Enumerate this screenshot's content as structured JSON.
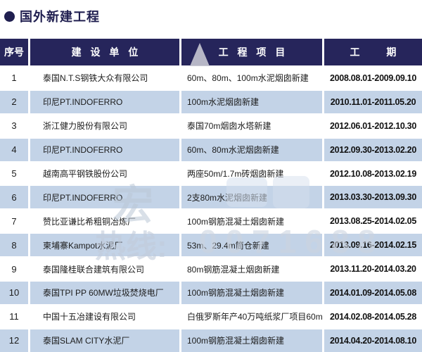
{
  "page": {
    "bullet": "●",
    "title": "国外新建工程"
  },
  "colors": {
    "header_bg": "#26255b",
    "title": "#201f50",
    "stripe": "#c3d3e7"
  },
  "table": {
    "headers": {
      "no": "序号",
      "unit": "建 设 单 位",
      "project": "工 程 项 目",
      "period": "工 期"
    },
    "rows": [
      {
        "no": "1",
        "unit": "泰国N.T.S钢铁大众有限公司",
        "project": "60m、80m、100m水泥烟囱新建",
        "period": "2008.08.01-2009.09.10"
      },
      {
        "no": "2",
        "unit": "印尼PT.INDOFERRO",
        "project": "100m水泥烟囱新建",
        "period": "2010.11.01-2011.05.20"
      },
      {
        "no": "3",
        "unit": "浙江健力股份有限公司",
        "project": "泰国70m烟囱水塔新建",
        "period": "2012.06.01-2012.10.30"
      },
      {
        "no": "4",
        "unit": "印尼PT.INDOFERRO",
        "project": "60m、80m水泥烟囱新建",
        "period": "2012.09.30-2013.02.20"
      },
      {
        "no": "5",
        "unit": "越南高平钢铁股份公司",
        "project": "两座50m/1.7m砖烟囱新建",
        "period": "2012.10.08-2013.02.19"
      },
      {
        "no": "6",
        "unit": "印尼PT.INDOFERRO",
        "project": "2支80m水泥烟囱新建",
        "period": "2013.03.30-2013.09.30"
      },
      {
        "no": "7",
        "unit": "赞比亚谦比希粗铜冶炼厂",
        "project": "100m钢筋混凝土烟囱新建",
        "period": "2013.08.25-2014.02.05"
      },
      {
        "no": "8",
        "unit": "柬埔寨Kampot水泥厂",
        "project": "53m、29.4m筒仓新建",
        "period": "2013.09.16-2014.02.15"
      },
      {
        "no": "9",
        "unit": "泰国隆桂联合建筑有限公司",
        "project": "80m钢筋混凝土烟囱新建",
        "period": "2013.11.20-2014.03.20"
      },
      {
        "no": "10",
        "unit": "泰国TPI PP 60MW垃圾焚烧电厂",
        "project": "100m钢筋混凝土烟囱新建",
        "period": "2014.01.09-2014.05.08"
      },
      {
        "no": "11",
        "unit": "中国十五冶建设有限公司",
        "project": "白俄罗斯年产40万吨纸浆厂项目60m烟囱新建",
        "period": "2014.02.08-2014.05.28"
      },
      {
        "no": "12",
        "unit": "泰国SLAM CITY水泥厂",
        "project": "100m钢筋混凝土烟囱新建",
        "period": "2014.04.20-2014.08.10"
      }
    ]
  },
  "watermark": {
    "char1": "宏",
    "hotline": "热线:",
    "number": "0071688"
  }
}
